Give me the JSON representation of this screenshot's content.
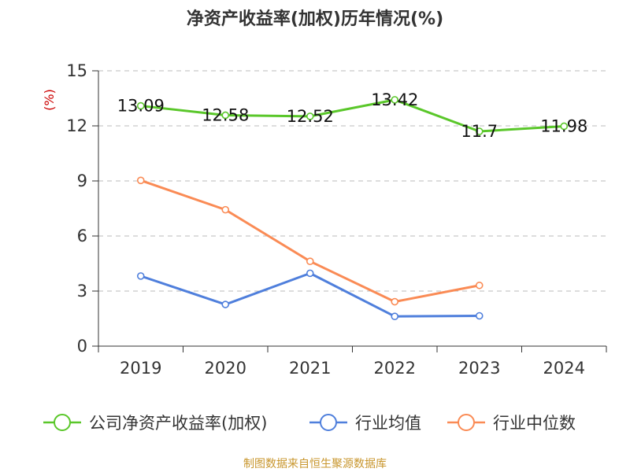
{
  "chart_data": {
    "type": "line",
    "title": "净资产收益率(加权)历年情况(%)",
    "ylabel": "(%)",
    "xlabel": "",
    "categories": [
      "2019",
      "2020",
      "2021",
      "2022",
      "2023",
      "2024"
    ],
    "ylim": [
      0,
      15
    ],
    "yticks": [
      0,
      3,
      6,
      9,
      12,
      15
    ],
    "grid": true,
    "legend_position": "bottom",
    "series": [
      {
        "name": "公司净资产收益率(加权)",
        "color": "#5ac72a",
        "values": [
          13.09,
          12.58,
          12.52,
          13.42,
          11.7,
          11.98
        ],
        "labels": [
          "13.09",
          "12.58",
          "12.52",
          "13.42",
          "11.7",
          "11.98"
        ]
      },
      {
        "name": "行业均值",
        "color": "#4f7fdc",
        "values": [
          3.82,
          2.27,
          3.97,
          1.62,
          1.65,
          null
        ]
      },
      {
        "name": "行业中位数",
        "color": "#fa8b55",
        "values": [
          9.03,
          7.43,
          4.62,
          2.42,
          3.31,
          null
        ]
      }
    ]
  },
  "footer": {
    "source": "制图数据来自恒生聚源数据库",
    "source_color": "#c8962d"
  },
  "colors": {
    "ylabel": "#cc0000",
    "axis": "#333333",
    "grid": "#bbbbbb"
  }
}
